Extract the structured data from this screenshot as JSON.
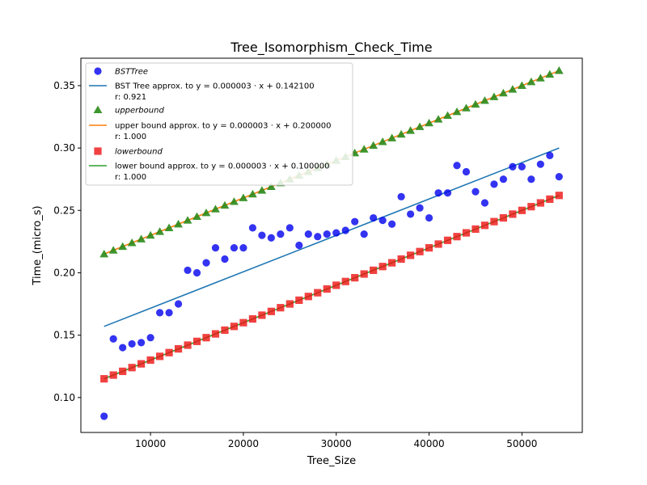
{
  "chart_data": {
    "type": "scatter",
    "title": "Tree_Isomorphism_Check_Time",
    "xlabel": "Tree_Size",
    "ylabel": "Time_(micro_s)",
    "xlim": [
      2500,
      56500
    ],
    "ylim": [
      0.072,
      0.372
    ],
    "xticks": [
      10000,
      20000,
      30000,
      40000,
      50000
    ],
    "yticks": [
      0.1,
      0.15,
      0.2,
      0.25,
      0.3,
      0.35
    ],
    "xtick_labels": [
      "10000",
      "20000",
      "30000",
      "40000",
      "50000"
    ],
    "ytick_labels": [
      "0.10",
      "0.15",
      "0.20",
      "0.25",
      "0.30",
      "0.35"
    ],
    "grid": false,
    "legend_position": "top-left",
    "x": [
      5000,
      6000,
      7000,
      8000,
      9000,
      10000,
      11000,
      12000,
      13000,
      14000,
      15000,
      16000,
      17000,
      18000,
      19000,
      20000,
      21000,
      22000,
      23000,
      24000,
      25000,
      26000,
      27000,
      28000,
      29000,
      30000,
      31000,
      32000,
      33000,
      34000,
      35000,
      36000,
      37000,
      38000,
      39000,
      40000,
      41000,
      42000,
      43000,
      44000,
      45000,
      46000,
      47000,
      48000,
      49000,
      50000,
      51000,
      52000,
      53000,
      54000
    ],
    "series": [
      {
        "name": "BSTTree",
        "kind": "scatter",
        "marker": "circle",
        "color": "#0000ee",
        "values": [
          0.085,
          0.147,
          0.14,
          0.143,
          0.144,
          0.148,
          0.168,
          0.168,
          0.175,
          0.202,
          0.2,
          0.208,
          0.22,
          0.211,
          0.22,
          0.22,
          0.236,
          0.23,
          0.228,
          0.231,
          0.236,
          0.222,
          0.231,
          0.229,
          0.231,
          0.232,
          0.234,
          0.241,
          0.231,
          0.244,
          0.242,
          0.239,
          0.261,
          0.247,
          0.252,
          0.244,
          0.264,
          0.264,
          0.286,
          0.281,
          0.265,
          0.256,
          0.271,
          0.275,
          0.285,
          0.285,
          0.275,
          0.287,
          0.294,
          0.277
        ]
      },
      {
        "name": "BST Tree approx. to y = 0.000003 · x + 0.142100",
        "r": "r: 0.921",
        "kind": "line",
        "color": "#1f77b4",
        "x": [
          5000,
          54000
        ],
        "values": [
          0.157,
          0.3
        ]
      },
      {
        "name": "upperbound",
        "kind": "scatter",
        "marker": "triangle",
        "color": "#2a8a1a",
        "values": [
          0.215,
          0.218,
          0.221,
          0.224,
          0.227,
          0.23,
          0.233,
          0.236,
          0.239,
          0.242,
          0.245,
          0.248,
          0.251,
          0.254,
          0.257,
          0.26,
          0.263,
          0.266,
          0.269,
          0.272,
          0.275,
          0.278,
          0.281,
          0.284,
          0.287,
          0.29,
          0.293,
          0.296,
          0.299,
          0.302,
          0.305,
          0.308,
          0.311,
          0.314,
          0.317,
          0.32,
          0.323,
          0.326,
          0.329,
          0.332,
          0.335,
          0.338,
          0.341,
          0.344,
          0.347,
          0.35,
          0.353,
          0.356,
          0.359,
          0.362
        ]
      },
      {
        "name": "upper bound approx. to y = 0.000003 · x + 0.200000",
        "r": "r: 1.000",
        "kind": "line",
        "color": "#ff7f0e",
        "x": [
          5000,
          54000
        ],
        "values": [
          0.215,
          0.362
        ]
      },
      {
        "name": "lowerbound",
        "kind": "scatter",
        "marker": "square",
        "color": "#ee1111",
        "values": [
          0.115,
          0.118,
          0.121,
          0.124,
          0.127,
          0.13,
          0.133,
          0.136,
          0.139,
          0.142,
          0.145,
          0.148,
          0.151,
          0.154,
          0.157,
          0.16,
          0.163,
          0.166,
          0.169,
          0.172,
          0.175,
          0.178,
          0.181,
          0.184,
          0.187,
          0.19,
          0.193,
          0.196,
          0.199,
          0.202,
          0.205,
          0.208,
          0.211,
          0.214,
          0.217,
          0.22,
          0.223,
          0.226,
          0.229,
          0.232,
          0.235,
          0.238,
          0.241,
          0.244,
          0.247,
          0.25,
          0.253,
          0.256,
          0.259,
          0.262
        ]
      },
      {
        "name": "lower bound approx. to y = 0.000003 · x + 0.100000",
        "r": "r: 1.000",
        "kind": "line",
        "color": "#2ca02c",
        "x": [
          5000,
          54000
        ],
        "values": [
          0.115,
          0.262
        ]
      }
    ]
  }
}
